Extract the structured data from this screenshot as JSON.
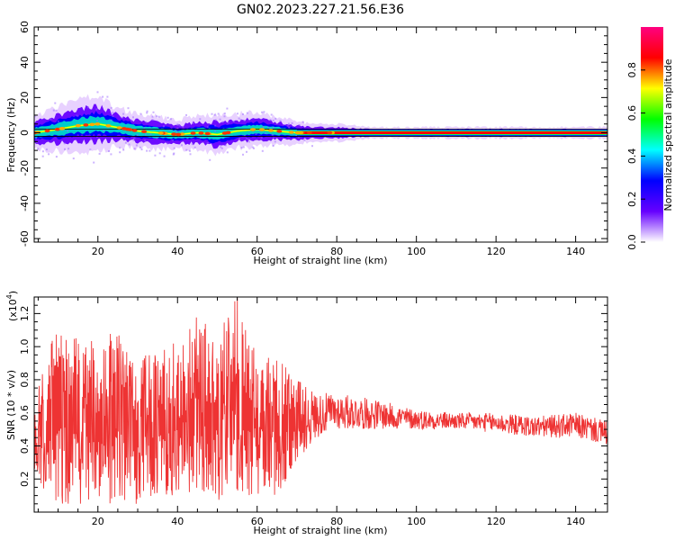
{
  "title": "GN02.2023.227.21.56.E36",
  "chart_data": [
    {
      "type": "heatmap",
      "xlabel": "Height of straight line (km)",
      "ylabel": "Frequency (Hz)",
      "xlim": [
        4,
        148
      ],
      "ylim": [
        -62,
        60
      ],
      "xticks": [
        20,
        40,
        60,
        80,
        100,
        120,
        140
      ],
      "yticks": [
        60,
        40,
        20,
        0,
        -20,
        -40,
        -60
      ],
      "colorbar": {
        "label": "Normalized spectral amplitude",
        "ticks": [
          "0.0",
          "0.2",
          "0.4",
          "0.6",
          "0.8"
        ],
        "range": [
          0,
          1
        ],
        "colors": [
          "#ffffff",
          "#6600ff",
          "#0000ff",
          "#00ffff",
          "#00ff00",
          "#ffff00",
          "#ff0000",
          "#ff0080"
        ]
      },
      "band": {
        "x": [
          4,
          10,
          15,
          20,
          25,
          30,
          35,
          40,
          45,
          50,
          55,
          60,
          65,
          70,
          75,
          80,
          90,
          100,
          110,
          120,
          130,
          140,
          148
        ],
        "center_hz": [
          0,
          2,
          4,
          5,
          3,
          1,
          0,
          -1,
          0,
          -1,
          1,
          2,
          1,
          0,
          0,
          0,
          0,
          0,
          0,
          0,
          0,
          0,
          0
        ],
        "halfwidth_hz": [
          6,
          8,
          9,
          10,
          7,
          6,
          6,
          5,
          6,
          7,
          6,
          6,
          5,
          4,
          3,
          3,
          2,
          2,
          2,
          2,
          2,
          2,
          2
        ]
      }
    },
    {
      "type": "line",
      "xlabel": "Height of straight line (km)",
      "ylabel": "SNR (10 * v/v)",
      "multiplier": "(x10",
      "multiplier_exp": "4",
      "xlim": [
        4,
        148
      ],
      "ylim": [
        0,
        1.3
      ],
      "xticks": [
        20,
        40,
        60,
        80,
        100,
        120,
        140
      ],
      "yticks": [
        "0.2",
        "0.4",
        "0.6",
        "0.8",
        "1.0",
        "1.2"
      ],
      "color": "#ee3333",
      "envelope": {
        "x": [
          4,
          10,
          15,
          20,
          25,
          30,
          35,
          40,
          45,
          50,
          55,
          60,
          65,
          70,
          75,
          80,
          90,
          100,
          110,
          120,
          130,
          140,
          148
        ],
        "max": [
          0.7,
          1.15,
          1.05,
          1.05,
          1.1,
          0.95,
          0.95,
          1.05,
          1.2,
          1.1,
          1.3,
          1.0,
          0.95,
          0.8,
          0.72,
          0.72,
          0.68,
          0.62,
          0.6,
          0.6,
          0.58,
          0.6,
          0.55
        ],
        "min": [
          0.1,
          0.05,
          0.05,
          0.05,
          0.05,
          0.05,
          0.05,
          0.1,
          0.05,
          0.05,
          0.1,
          0.1,
          0.1,
          0.3,
          0.45,
          0.5,
          0.5,
          0.5,
          0.5,
          0.48,
          0.45,
          0.45,
          0.4
        ]
      }
    }
  ]
}
